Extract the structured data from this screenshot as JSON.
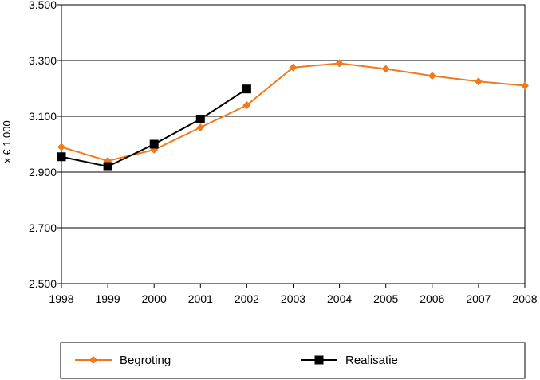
{
  "chart_data": {
    "type": "line",
    "title": "",
    "xlabel": "",
    "ylabel": "x € 1.000",
    "ylim": [
      2500,
      3500
    ],
    "y_ticks": [
      2500,
      2700,
      2900,
      3100,
      3300,
      3500
    ],
    "y_tick_labels": [
      "2.500",
      "2.700",
      "2.900",
      "3.100",
      "3.300",
      "3.500"
    ],
    "categories": [
      "1998",
      "1999",
      "2000",
      "2001",
      "2002",
      "2003",
      "2004",
      "2005",
      "2006",
      "2007",
      "2008"
    ],
    "grid": "horizontal",
    "legend_position": "bottom",
    "series": [
      {
        "name": "Begroting",
        "color": "#f07a1e",
        "marker": "diamond",
        "values": [
          2990,
          2940,
          2980,
          3060,
          3140,
          3275,
          3290,
          3270,
          3245,
          3225,
          3210
        ]
      },
      {
        "name": "Realisatie",
        "color": "#000000",
        "marker": "square",
        "values": [
          2955,
          2920,
          3000,
          3090,
          3198,
          null,
          null,
          null,
          null,
          null,
          null
        ]
      }
    ]
  }
}
